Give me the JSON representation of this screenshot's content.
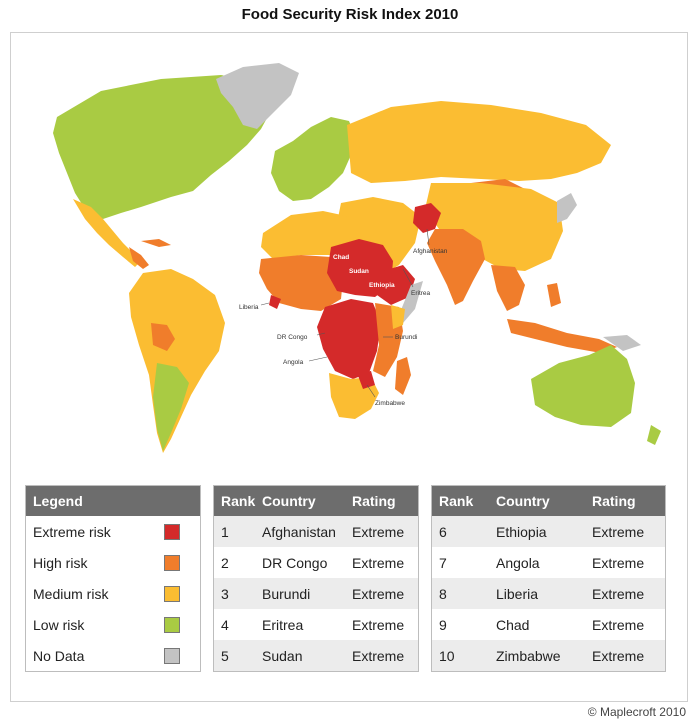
{
  "title": "Food Security Risk Index 2010",
  "credit": "© Maplecroft 2010",
  "colors": {
    "extreme": "#d42a2a",
    "high": "#f07d2b",
    "medium": "#fbbd32",
    "low": "#a9cb43",
    "nodata": "#c3c3c3"
  },
  "map_labels": {
    "chad": "Chad",
    "sudan": "Sudan",
    "ethiopia": "Ethiopia",
    "afghanistan": "Afghanistan",
    "eritrea": "Eritrea",
    "liberia": "Liberia",
    "dr_congo": "DR Congo",
    "burundi": "Burundi",
    "angola": "Angola",
    "zimbabwe": "Zimbabwe"
  },
  "legend": {
    "header": "Legend",
    "items": [
      {
        "label": "Extreme risk",
        "color": "#d42a2a"
      },
      {
        "label": "High risk",
        "color": "#f07d2b"
      },
      {
        "label": "Medium risk",
        "color": "#fbbd32"
      },
      {
        "label": "Low risk",
        "color": "#a9cb43"
      },
      {
        "label": "No Data",
        "color": "#c3c3c3"
      }
    ]
  },
  "ranking_headers": {
    "rank": "Rank",
    "country": "Country",
    "rating": "Rating"
  },
  "rankings": [
    {
      "rank": "1",
      "country": "Afghanistan",
      "rating": "Extreme"
    },
    {
      "rank": "2",
      "country": "DR Congo",
      "rating": "Extreme"
    },
    {
      "rank": "3",
      "country": "Burundi",
      "rating": "Extreme"
    },
    {
      "rank": "4",
      "country": "Eritrea",
      "rating": "Extreme"
    },
    {
      "rank": "5",
      "country": "Sudan",
      "rating": "Extreme"
    },
    {
      "rank": "6",
      "country": "Ethiopia",
      "rating": "Extreme"
    },
    {
      "rank": "7",
      "country": "Angola",
      "rating": "Extreme"
    },
    {
      "rank": "8",
      "country": "Liberia",
      "rating": "Extreme"
    },
    {
      "rank": "9",
      "country": "Chad",
      "rating": "Extreme"
    },
    {
      "rank": "10",
      "country": "Zimbabwe",
      "rating": "Extreme"
    }
  ]
}
